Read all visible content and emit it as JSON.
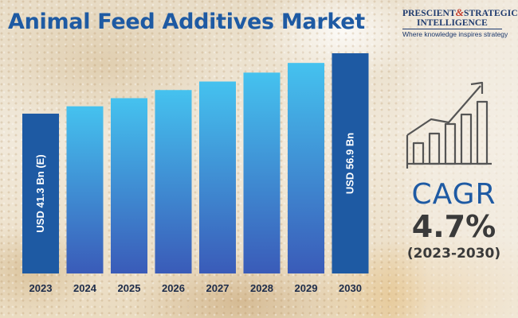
{
  "title": "Animal Feed Additives Market",
  "logo": {
    "line1_a": "PRESCIENT",
    "line1_amp": "&",
    "line1_b": "STRATEGIC",
    "line2": "INTELLIGENCE",
    "tagline": "Where knowledge inspires strategy"
  },
  "icon": "bar-chart-growth-arrow-icon",
  "cagr": {
    "label": "CAGR",
    "value": "4.7%",
    "period": "(2023-2030)"
  },
  "colors": {
    "title": "#1e5aa3",
    "highlight_bar": "#1e5aa3",
    "bar_top": "#45c2ef",
    "bar_bottom": "#3a5bb8",
    "text_dark": "#3a3a3a"
  },
  "chart_data": {
    "type": "bar",
    "categories": [
      "2023",
      "2024",
      "2025",
      "2026",
      "2027",
      "2028",
      "2029",
      "2030"
    ],
    "values": [
      41.3,
      43.2,
      45.3,
      47.4,
      49.6,
      51.9,
      54.4,
      56.9
    ],
    "unit": "USD Bn",
    "bar_labels": [
      "USD 41.3 Bn (E)",
      "",
      "",
      "",
      "",
      "",
      "",
      "USD 56.9 Bn"
    ],
    "highlighted": [
      "2023",
      "2030"
    ],
    "xlabel": "",
    "ylabel": "",
    "grid": false,
    "legend": "none"
  }
}
